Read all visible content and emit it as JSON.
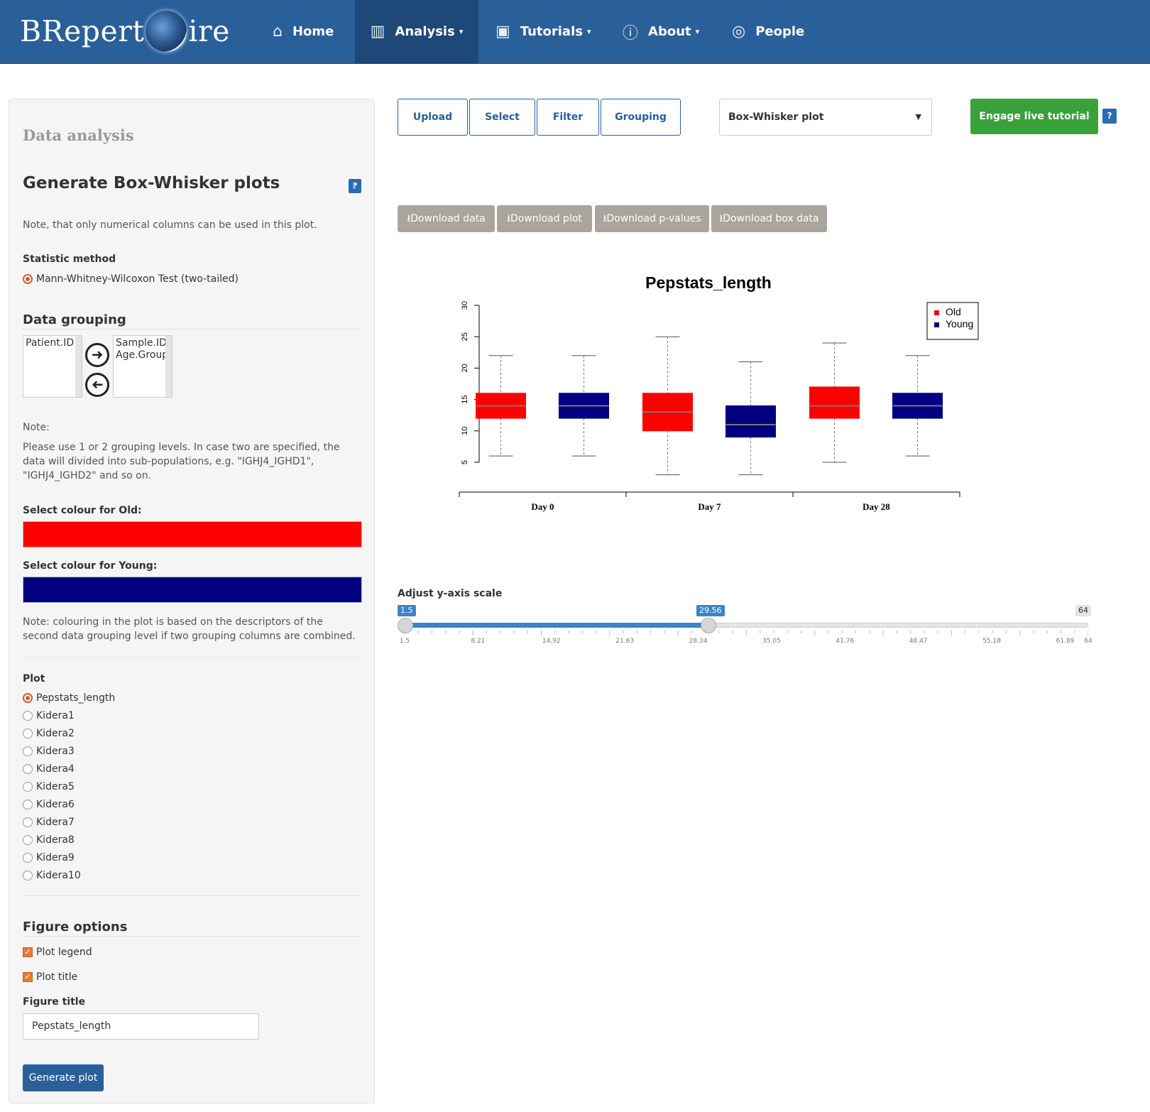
{
  "navbar": {
    "brand_left": "BRepert",
    "brand_right": "ire",
    "items": [
      {
        "label": "Home",
        "icon": "home-icon",
        "glyph": "⌂",
        "caret": false
      },
      {
        "label": "Analysis",
        "icon": "bar-chart-icon",
        "glyph": "▥",
        "caret": true
      },
      {
        "label": "Tutorials",
        "icon": "film-icon",
        "glyph": "▣",
        "caret": true
      },
      {
        "label": "About",
        "icon": "info-icon",
        "glyph": "ⓘ",
        "caret": true
      },
      {
        "label": "People",
        "icon": "person-icon",
        "glyph": "◎",
        "caret": false
      }
    ],
    "active": "Analysis"
  },
  "sidebar": {
    "header": "Data analysis",
    "title": "Generate Box-Whisker plots",
    "title_help_icon": "help-icon",
    "intro_note": "Note, that only numerical columns can be used in this plot.",
    "statistic_label": "Statistic method",
    "statistic_option": "Mann-Whitney-Wilcoxon Test (two-tailed)",
    "grouping_header": "Data grouping",
    "grouping_available": [
      "Patient.ID"
    ],
    "grouping_selected": [
      "Sample.ID",
      "Age.Group"
    ],
    "grouping_note_label": "Note:",
    "grouping_note": "Please use 1 or 2 grouping levels. In case two are specified, the data will divided into sub-populations, e.g. \"IGHJ4_IGHD1\", \"IGHJ4_IGHD2\" and so on.",
    "colour_old_label": "Select colour for Old:",
    "colour_old": "#ff0000",
    "colour_young_label": "Select colour for Young:",
    "colour_young": "#000080",
    "colour_note": "Note: colouring in the plot is based on the descriptors of the second data grouping level if two grouping columns are combined.",
    "plot_label": "Plot",
    "plot_options": [
      "Pepstats_length",
      "Kidera1",
      "Kidera2",
      "Kidera3",
      "Kidera4",
      "Kidera5",
      "Kidera6",
      "Kidera7",
      "Kidera8",
      "Kidera9",
      "Kidera10"
    ],
    "plot_selected": "Pepstats_length",
    "figure_options_header": "Figure options",
    "plot_legend_label": "Plot legend",
    "plot_title_label": "Plot title",
    "figure_title_label": "Figure title",
    "figure_title_value": "Pepstats_length",
    "generate_button": "Generate plot"
  },
  "main": {
    "tabs": [
      "Upload",
      "Select",
      "Filter",
      "Grouping"
    ],
    "plot_type": "Box-Whisker plot",
    "tutorial_button": "Engage live tutorial",
    "help_button": "?",
    "downloads": [
      "Download data",
      "Download plot",
      "Download p-values",
      "Download box data"
    ],
    "slider": {
      "label": "Adjust y-axis scale",
      "min": 1.5,
      "max": 64,
      "from": 1.5,
      "to": 29.56,
      "from_label": "1.5",
      "to_label": "29.56",
      "max_label": "64",
      "ticks": [
        "1.5",
        "8.21",
        "14.92",
        "21.63",
        "28.34",
        "35.05",
        "41.76",
        "48.47",
        "55.18",
        "61.89",
        "64"
      ]
    }
  },
  "chart_data": {
    "type": "box",
    "title": "Pepstats_length",
    "categories": [
      "Day 0",
      "Day 7",
      "Day 28"
    ],
    "ylim": [
      5,
      30
    ],
    "yticks": [
      "5",
      "10",
      "15",
      "20",
      "25",
      "30"
    ],
    "legend": {
      "position": "top-right",
      "entries": [
        "Old",
        "Young"
      ]
    },
    "series": [
      {
        "name": "Old",
        "color": "#ff0000",
        "boxes": [
          {
            "min": 6,
            "q1": 12,
            "median": 14,
            "q3": 16,
            "max": 22
          },
          {
            "min": 3,
            "q1": 10,
            "median": 13,
            "q3": 16,
            "max": 25
          },
          {
            "min": 5,
            "q1": 12,
            "median": 14,
            "q3": 17,
            "max": 24
          }
        ]
      },
      {
        "name": "Young",
        "color": "#000080",
        "boxes": [
          {
            "min": 6,
            "q1": 12,
            "median": 14,
            "q3": 16,
            "max": 22
          },
          {
            "min": 3,
            "q1": 9,
            "median": 11,
            "q3": 14,
            "max": 21
          },
          {
            "min": 6,
            "q1": 12,
            "median": 14,
            "q3": 16,
            "max": 22
          }
        ]
      }
    ]
  }
}
